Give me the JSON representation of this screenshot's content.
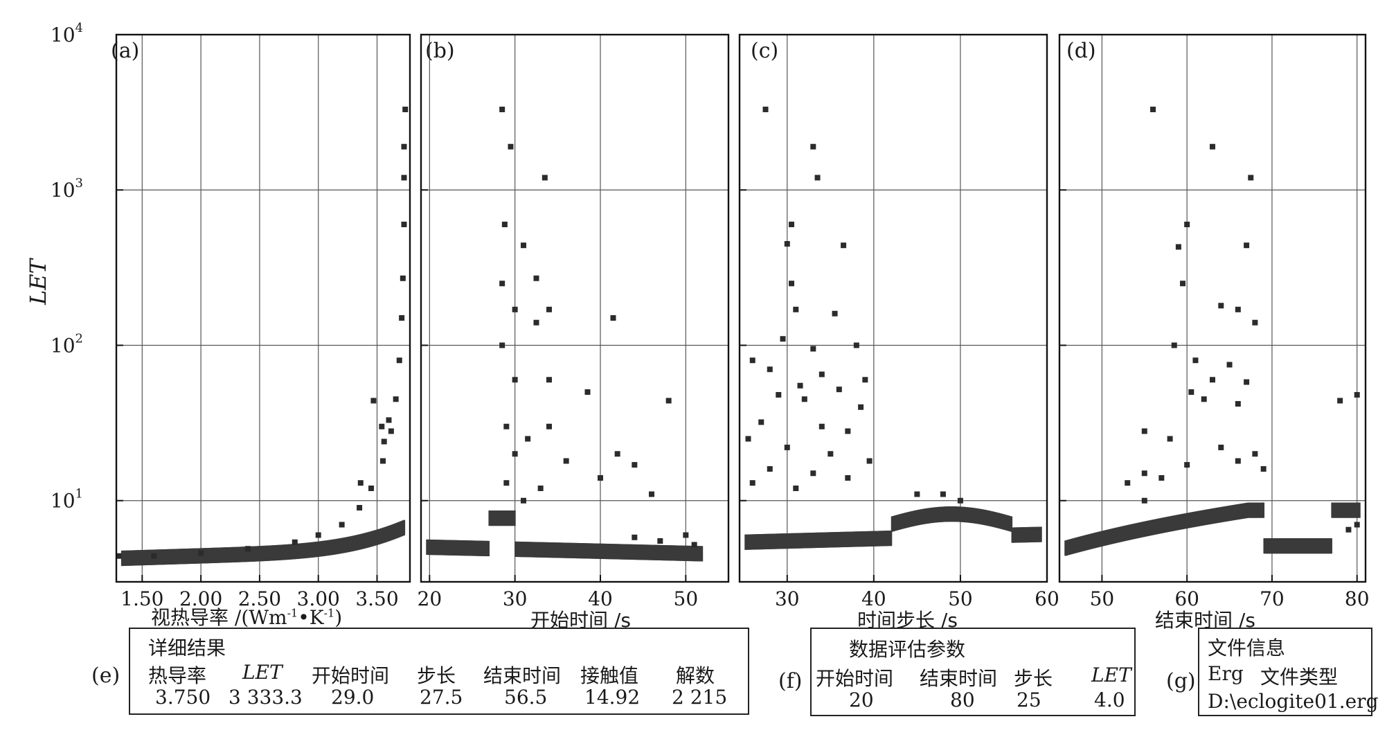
{
  "figure": {
    "y_axis_label": "LET",
    "y_ticks": [
      {
        "base": "10",
        "exp": "4",
        "value": 10000
      },
      {
        "base": "10",
        "exp": "3",
        "value": 1000
      },
      {
        "base": "10",
        "exp": "2",
        "value": 100
      },
      {
        "base": "10",
        "exp": "1",
        "value": 10
      }
    ]
  },
  "chart_data": [
    {
      "type": "scatter",
      "panel": "(a)",
      "xlabel": "视热导率 /(Wm⁻¹•K⁻¹)",
      "ylabel": "LET",
      "xlim": [
        1.28,
        3.78
      ],
      "ylim": [
        3.0,
        10000
      ],
      "yscale": "log",
      "xticks": [
        "1.50",
        "2.00",
        "2.50",
        "3.00",
        "3.50"
      ],
      "xtick_values": [
        1.5,
        2.0,
        2.5,
        3.0,
        3.5
      ],
      "grid": true,
      "series": [
        {
          "points": [
            [
              1.3,
              4.4
            ],
            [
              1.6,
              4.4
            ],
            [
              2.0,
              4.6
            ],
            [
              2.4,
              4.9
            ],
            [
              2.8,
              5.4
            ],
            [
              3.0,
              6.0
            ],
            [
              3.2,
              7.0
            ],
            [
              3.35,
              9.0
            ],
            [
              3.45,
              12
            ],
            [
              3.55,
              18
            ],
            [
              3.62,
              28
            ],
            [
              3.66,
              45
            ],
            [
              3.69,
              80
            ],
            [
              3.71,
              150
            ],
            [
              3.72,
              270
            ],
            [
              3.73,
              600
            ],
            [
              3.73,
              1200
            ],
            [
              3.73,
              1900
            ],
            [
              3.74,
              3300
            ],
            [
              3.47,
              44
            ],
            [
              3.36,
              13
            ],
            [
              3.54,
              30
            ],
            [
              3.56,
              24
            ],
            [
              3.6,
              33
            ]
          ]
        }
      ]
    },
    {
      "type": "scatter",
      "panel": "(b)",
      "xlabel": "开始时间 /s",
      "ylabel": "LET",
      "xlim": [
        19,
        55
      ],
      "ylim": [
        3.0,
        10000
      ],
      "yscale": "log",
      "xticks": [
        "20",
        "30",
        "40",
        "50"
      ],
      "xtick_values": [
        20,
        30,
        40,
        50
      ],
      "grid": true,
      "series": [
        {
          "points": [
            [
              28.5,
              3300
            ],
            [
              29.5,
              1900
            ],
            [
              33.5,
              1200
            ],
            [
              28.8,
              600
            ],
            [
              31,
              440
            ],
            [
              28.5,
              250
            ],
            [
              32.5,
              270
            ],
            [
              30,
              170
            ],
            [
              34,
              170
            ],
            [
              32.5,
              140
            ],
            [
              41.5,
              150
            ],
            [
              28.5,
              100
            ],
            [
              30,
              60
            ],
            [
              34,
              60
            ],
            [
              38.5,
              50
            ],
            [
              48,
              44
            ],
            [
              29,
              30
            ],
            [
              31.5,
              25
            ],
            [
              34,
              30
            ],
            [
              30,
              20
            ],
            [
              42,
              20
            ],
            [
              36,
              18
            ],
            [
              44,
              17
            ],
            [
              40,
              14
            ],
            [
              29,
              13
            ],
            [
              33,
              12
            ],
            [
              46,
              11
            ],
            [
              31,
              10
            ],
            [
              50,
              6
            ],
            [
              51,
              5.2
            ],
            [
              47,
              5.5
            ],
            [
              44,
              5.8
            ]
          ]
        }
      ]
    },
    {
      "type": "scatter",
      "panel": "(c)",
      "xlabel": "时间步长 /s",
      "ylabel": "LET",
      "xlim": [
        24.5,
        60
      ],
      "ylim": [
        3.0,
        10000
      ],
      "yscale": "log",
      "xticks": [
        "30",
        "40",
        "50",
        "60"
      ],
      "xtick_values": [
        30,
        40,
        50,
        60
      ],
      "grid": true,
      "series": [
        {
          "points": [
            [
              27.5,
              3300
            ],
            [
              33,
              1900
            ],
            [
              33.5,
              1200
            ],
            [
              30.5,
              600
            ],
            [
              30,
              450
            ],
            [
              36.5,
              440
            ],
            [
              30.5,
              250
            ],
            [
              31,
              170
            ],
            [
              35.5,
              160
            ],
            [
              29.5,
              110
            ],
            [
              38,
              100
            ],
            [
              33,
              95
            ],
            [
              26,
              80
            ],
            [
              28,
              70
            ],
            [
              34,
              65
            ],
            [
              39,
              60
            ],
            [
              31.5,
              55
            ],
            [
              36,
              52
            ],
            [
              29,
              48
            ],
            [
              32,
              45
            ],
            [
              38.5,
              40
            ],
            [
              27,
              32
            ],
            [
              34,
              30
            ],
            [
              37,
              28
            ],
            [
              25.5,
              25
            ],
            [
              30,
              22
            ],
            [
              35,
              20
            ],
            [
              39.5,
              18
            ],
            [
              28,
              16
            ],
            [
              33,
              15
            ],
            [
              37,
              14
            ],
            [
              26,
              13
            ],
            [
              31,
              12
            ],
            [
              45,
              11
            ],
            [
              48,
              11
            ],
            [
              50,
              10
            ]
          ]
        }
      ]
    },
    {
      "type": "scatter",
      "panel": "(d)",
      "xlabel": "结束时间 /s",
      "ylabel": "LET",
      "xlim": [
        45,
        81
      ],
      "ylim": [
        3.0,
        10000
      ],
      "yscale": "log",
      "xticks": [
        "50",
        "60",
        "70",
        "80"
      ],
      "xtick_values": [
        50,
        60,
        70,
        80
      ],
      "grid": true,
      "series": [
        {
          "points": [
            [
              56,
              3300
            ],
            [
              63,
              1900
            ],
            [
              67.5,
              1200
            ],
            [
              60,
              600
            ],
            [
              59,
              430
            ],
            [
              67,
              440
            ],
            [
              59.5,
              250
            ],
            [
              64,
              180
            ],
            [
              66,
              170
            ],
            [
              68,
              140
            ],
            [
              58.5,
              100
            ],
            [
              61,
              80
            ],
            [
              65,
              75
            ],
            [
              63,
              60
            ],
            [
              67,
              58
            ],
            [
              60.5,
              50
            ],
            [
              62,
              45
            ],
            [
              66,
              42
            ],
            [
              78,
              44
            ],
            [
              80,
              48
            ],
            [
              55,
              28
            ],
            [
              58,
              25
            ],
            [
              64,
              22
            ],
            [
              68,
              20
            ],
            [
              55,
              15
            ],
            [
              57,
              14
            ],
            [
              60,
              17
            ],
            [
              66,
              18
            ],
            [
              69,
              16
            ],
            [
              53,
              13
            ],
            [
              55,
              10
            ],
            [
              79,
              6.5
            ],
            [
              80,
              7
            ]
          ]
        }
      ]
    }
  ],
  "panels": [
    {
      "tag": "(a)",
      "xlabel": "视热导率 /(Wm",
      "xlabel_sup1": "-1",
      "xlabel_mid": "•K",
      "xlabel_sup2": "-1",
      "xlabel_end": ")"
    },
    {
      "tag": "(b)",
      "xlabel": "开始时间 /s"
    },
    {
      "tag": "(c)",
      "xlabel": "时间步长 /s"
    },
    {
      "tag": "(d)",
      "xlabel": "结束时间 /s"
    }
  ],
  "details": {
    "tag": "(e)",
    "title": "详细结果",
    "headers": [
      "热导率",
      "LET",
      "开始时间",
      "步长",
      "结束时间",
      "接触值",
      "解数"
    ],
    "values": [
      "3.750",
      "3 333.3",
      "29.0",
      "27.5",
      "56.5",
      "14.92",
      "2 215"
    ]
  },
  "params": {
    "tag": "(f)",
    "title": "数据评估参数",
    "headers": [
      "开始时间",
      "结束时间",
      "步长",
      "LET"
    ],
    "values": [
      "20",
      "80",
      "25",
      "4.0"
    ]
  },
  "fileinfo": {
    "tag": "(g)",
    "title": "文件信息",
    "type_value": "Erg",
    "type_label": "文件类型",
    "path": "D:\\eclogite01.erg"
  }
}
